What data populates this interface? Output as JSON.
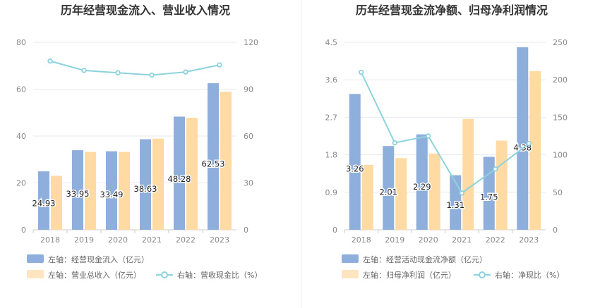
{
  "chart_data": [
    {
      "type": "bar",
      "title": "历年经营现金流入、营业收入情况",
      "categories": [
        "2018",
        "2019",
        "2020",
        "2021",
        "2022",
        "2023"
      ],
      "series": [
        {
          "name": "经营现金流入",
          "axis": "left",
          "kind": "bar",
          "color": "#8eaedc",
          "values": [
            24.93,
            33.95,
            33.49,
            38.63,
            48.28,
            62.53
          ],
          "labels": [
            "24.93",
            "33.95",
            "33.49",
            "38.63",
            "48.28",
            "62.53"
          ]
        },
        {
          "name": "营业总收入",
          "axis": "left",
          "kind": "bar",
          "color": "#ffdba3",
          "values": [
            23.0,
            33.2,
            33.2,
            38.9,
            47.8,
            58.9
          ]
        },
        {
          "name": "营收现金比",
          "axis": "right",
          "kind": "line",
          "color": "#8dd3de",
          "values": [
            108,
            102,
            100.5,
            99,
            101,
            105.5
          ]
        }
      ],
      "yleft": {
        "min": 0,
        "max": 80,
        "ticks": [
          "0",
          "20",
          "40",
          "60",
          "80"
        ]
      },
      "yright": {
        "min": 0,
        "max": 120,
        "ticks": [
          "0",
          "30",
          "60",
          "90",
          "120"
        ]
      },
      "legend": [
        {
          "text": "左轴：经营现金流入（亿元）",
          "type": "rect",
          "color": "#8eaedc"
        },
        {
          "text": "左轴：营业总收入（亿元）",
          "type": "rect",
          "color": "#ffe5bf"
        },
        {
          "text": "右轴：营收现金比（%）",
          "type": "line",
          "color": "#8dd3de"
        }
      ]
    },
    {
      "type": "bar",
      "title": "历年经营现金流净额、归母净利润情况",
      "categories": [
        "2018",
        "2019",
        "2020",
        "2021",
        "2022",
        "2023"
      ],
      "series": [
        {
          "name": "经营活动现金流净额",
          "axis": "left",
          "kind": "bar",
          "color": "#8eaedc",
          "values": [
            3.26,
            2.01,
            2.29,
            1.31,
            1.75,
            4.38
          ],
          "labels": [
            "3.26",
            "2.01",
            "2.29",
            "1.31",
            "1.75",
            "4.38"
          ]
        },
        {
          "name": "归母净利润",
          "axis": "left",
          "kind": "bar",
          "color": "#ffdba3",
          "values": [
            1.56,
            1.72,
            1.83,
            2.66,
            2.14,
            3.81
          ]
        },
        {
          "name": "净现比",
          "axis": "right",
          "kind": "line",
          "color": "#8dd3de",
          "values": [
            210,
            116,
            125,
            49,
            81,
            115
          ]
        }
      ],
      "yleft": {
        "min": 0,
        "max": 4.5,
        "ticks": [
          "0",
          "0.9",
          "1.8",
          "2.7",
          "3.6",
          "4.5"
        ]
      },
      "yright": {
        "min": 0,
        "max": 250,
        "ticks": [
          "0",
          "50",
          "100",
          "150",
          "200",
          "250"
        ]
      },
      "legend": [
        {
          "text": "左轴：经营活动现金流净额（亿元）",
          "type": "rect",
          "color": "#8eaedc"
        },
        {
          "text": "左轴：归母净利润（亿元）",
          "type": "rect",
          "color": "#ffe5bf"
        },
        {
          "text": "右轴：净现比（%）",
          "type": "line",
          "color": "#8dd3de"
        }
      ]
    }
  ]
}
